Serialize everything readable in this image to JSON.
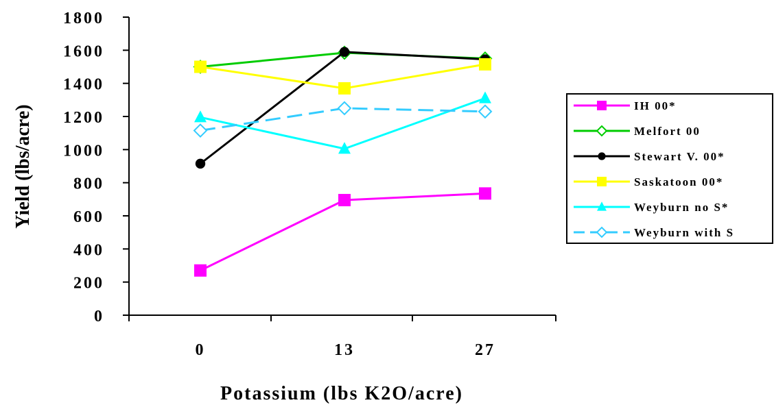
{
  "chart_data": {
    "type": "line",
    "title": "",
    "xlabel": "Potassium (lbs K2O/acre)",
    "ylabel": "Yield (lbs/acre)",
    "categories": [
      "0",
      "13",
      "27"
    ],
    "ylim": [
      0,
      1800
    ],
    "yticks": [
      0,
      200,
      400,
      600,
      800,
      1000,
      1200,
      1400,
      1600,
      1800
    ],
    "grid": false,
    "legend_position": "right",
    "series": [
      {
        "name": "IH 00*",
        "values": [
          270,
          695,
          735
        ],
        "color": "#ff00ff",
        "marker": "square",
        "dashed": false
      },
      {
        "name": "Melfort 00",
        "values": [
          1500,
          1585,
          1550
        ],
        "color": "#00cc00",
        "marker": "diamond-open",
        "dashed": false
      },
      {
        "name": "Stewart V. 00*",
        "values": [
          915,
          1590,
          1545
        ],
        "color": "#000000",
        "marker": "circle",
        "dashed": false
      },
      {
        "name": "Saskatoon 00*",
        "values": [
          1500,
          1370,
          1515
        ],
        "color": "#ffff00",
        "marker": "square",
        "dashed": false
      },
      {
        "name": "Weyburn no S*",
        "values": [
          1195,
          1005,
          1310
        ],
        "color": "#00ffff",
        "marker": "triangle",
        "dashed": false
      },
      {
        "name": "Weyburn with S",
        "values": [
          1115,
          1250,
          1230
        ],
        "color": "#33ccff",
        "marker": "diamond-open",
        "dashed": true
      }
    ]
  }
}
